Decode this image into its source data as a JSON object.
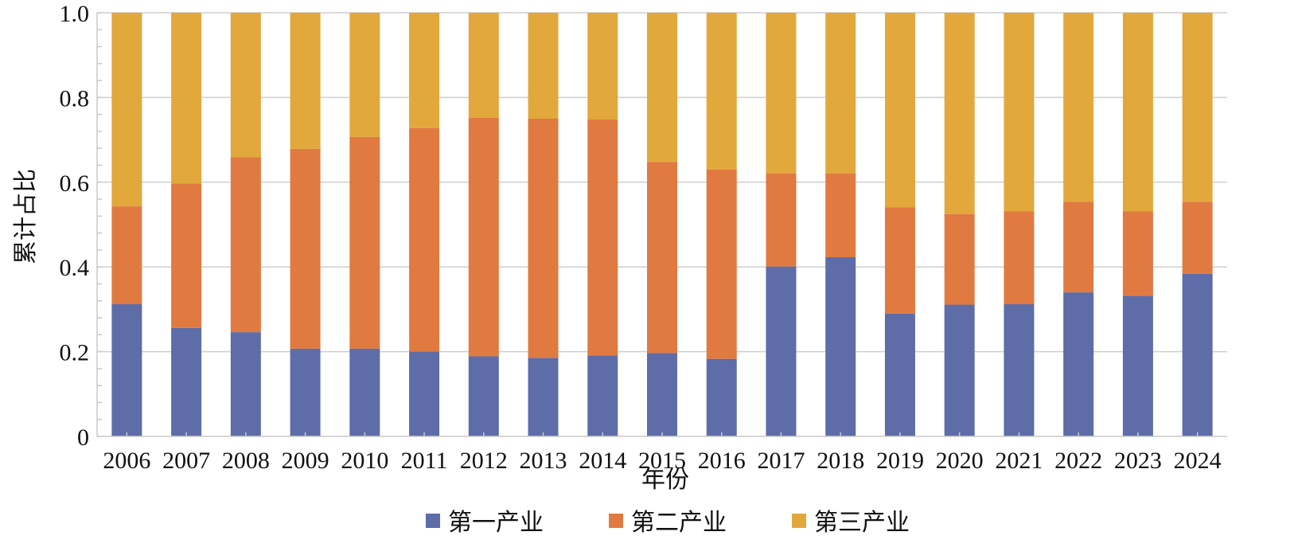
{
  "chart_data": {
    "type": "bar",
    "stacked": true,
    "title": "",
    "xlabel": "年份",
    "ylabel": "累计占比",
    "ylim": [
      0,
      1.0
    ],
    "yticks": [
      "0",
      "0.2",
      "0.4",
      "0.6",
      "0.8",
      "1.0"
    ],
    "grid": true,
    "legend_position": "bottom",
    "categories": [
      "2006",
      "2007",
      "2008",
      "2009",
      "2010",
      "2011",
      "2012",
      "2013",
      "2014",
      "2015",
      "2016",
      "2017",
      "2018",
      "2019",
      "2020",
      "2021",
      "2022",
      "2023",
      "2024"
    ],
    "series": [
      {
        "name": "第一产业",
        "color": "#5E6CA8",
        "values": [
          0.312,
          0.256,
          0.246,
          0.207,
          0.207,
          0.2,
          0.189,
          0.185,
          0.191,
          0.197,
          0.183,
          0.401,
          0.423,
          0.29,
          0.311,
          0.312,
          0.34,
          0.332,
          0.384
        ]
      },
      {
        "name": "第二产业",
        "color": "#E07A40",
        "values": [
          0.231,
          0.341,
          0.413,
          0.472,
          0.5,
          0.528,
          0.563,
          0.565,
          0.557,
          0.451,
          0.447,
          0.22,
          0.198,
          0.251,
          0.214,
          0.219,
          0.214,
          0.199,
          0.17
        ]
      },
      {
        "name": "第三产业",
        "color": "#E2A83C",
        "values": [
          0.457,
          0.403,
          0.341,
          0.321,
          0.293,
          0.272,
          0.248,
          0.25,
          0.252,
          0.352,
          0.37,
          0.379,
          0.379,
          0.459,
          0.475,
          0.469,
          0.446,
          0.469,
          0.446
        ]
      }
    ]
  }
}
